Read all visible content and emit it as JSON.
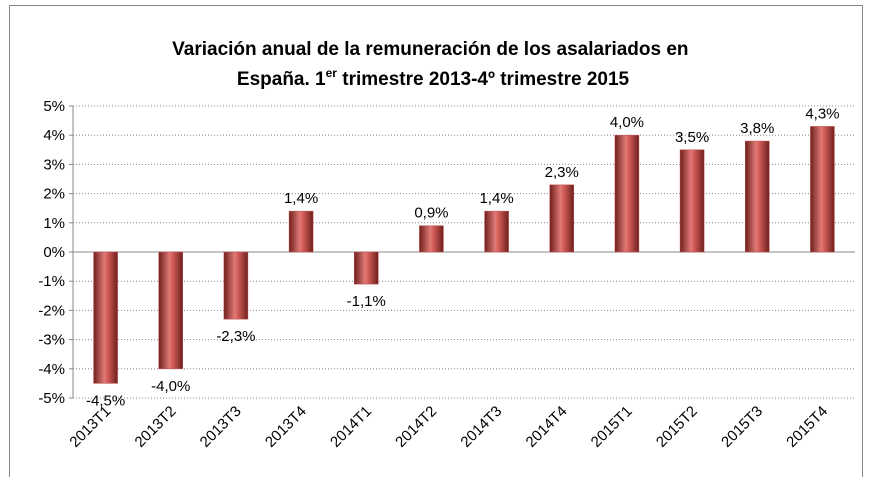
{
  "chart_data": {
    "type": "bar",
    "title": [
      "Variación anual de la remuneración de los asalariados  en",
      "España. 1",
      "er",
      " trimestre 2013-4º trimestre 2015"
    ],
    "categories": [
      "2013T1",
      "2013T2",
      "2013T3",
      "2013T4",
      "2014T1",
      "2014T2",
      "2014T3",
      "2014T4",
      "2015T1",
      "2015T2",
      "2015T3",
      "2015T4"
    ],
    "values": [
      -4.5,
      -4.0,
      -2.3,
      1.4,
      -1.1,
      0.9,
      1.4,
      2.3,
      4.0,
      3.5,
      3.8,
      4.3
    ],
    "value_labels": [
      "-4,5%",
      "-4,0%",
      "-2,3%",
      "1,4%",
      "-1,1%",
      "0,9%",
      "1,4%",
      "2,3%",
      "4,0%",
      "3,5%",
      "3,8%",
      "4,3%"
    ],
    "color": "#c0504d",
    "ylim": [
      -5,
      5
    ],
    "yticks": [
      {
        "value": -5,
        "label": "-5%"
      },
      {
        "value": -4,
        "label": "-4%"
      },
      {
        "value": -3,
        "label": "-3%"
      },
      {
        "value": -2,
        "label": "-2%"
      },
      {
        "value": -1,
        "label": "-1%"
      },
      {
        "value": 0,
        "label": "0%"
      },
      {
        "value": 1,
        "label": "1%"
      },
      {
        "value": 2,
        "label": "2%"
      },
      {
        "value": 3,
        "label": "3%"
      },
      {
        "value": 4,
        "label": "4%"
      },
      {
        "value": 5,
        "label": "5%"
      }
    ],
    "grid": true
  }
}
